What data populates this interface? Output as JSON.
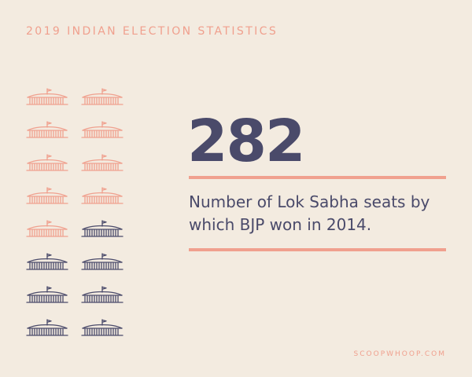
{
  "header": {
    "title": "2019 INDIAN ELECTION STATISTICS"
  },
  "stat": {
    "value": "282",
    "description": "Number of Lok Sabha seats by which BJP won in 2014."
  },
  "icons": {
    "total": 16,
    "highlighted": 9,
    "highlight_color": "#f0a08e",
    "base_color": "#4a4a6a"
  },
  "footer": {
    "credit": "SCOOPWHOOP.COM"
  },
  "colors": {
    "background": "#f3ebe0",
    "accent": "#f0a08e",
    "text": "#4a4a6a"
  }
}
